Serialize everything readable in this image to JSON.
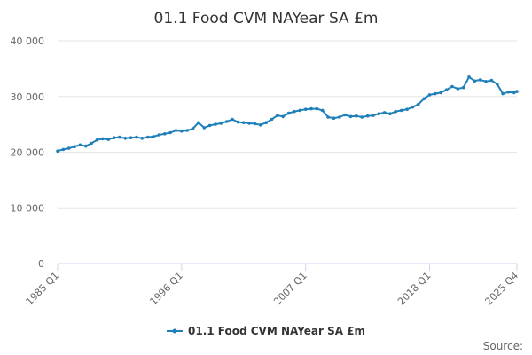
{
  "chart_data": {
    "type": "line",
    "title": "01.1 Food CVM NAYear SA £m",
    "xlabel": "",
    "ylabel": "",
    "ylim": [
      0,
      40000
    ],
    "y_ticks": [
      "0",
      "10 000",
      "20 000",
      "30 000",
      "40 000"
    ],
    "y_tick_values": [
      0,
      10000,
      20000,
      30000,
      40000
    ],
    "x_range": [
      1985.0,
      2025.75
    ],
    "x_ticks": [
      {
        "label": "1985 Q1",
        "value": 1985.0
      },
      {
        "label": "1996 Q1",
        "value": 1996.0
      },
      {
        "label": "2007 Q1",
        "value": 2007.0
      },
      {
        "label": "2018 Q1",
        "value": 2018.0
      },
      {
        "label": "2025 Q4",
        "value": 2025.75
      }
    ],
    "grid": true,
    "legend_position": "bottom-center",
    "color": "#1f7fb9",
    "series": [
      {
        "name": "01.1 Food CVM NAYear SA £m",
        "x": [
          1985.0,
          1985.5,
          1986.0,
          1986.5,
          1987.0,
          1987.5,
          1988.0,
          1988.5,
          1989.0,
          1989.5,
          1990.0,
          1990.5,
          1991.0,
          1991.5,
          1992.0,
          1992.5,
          1993.0,
          1993.5,
          1994.0,
          1994.5,
          1995.0,
          1995.5,
          1996.0,
          1996.5,
          1997.0,
          1997.5,
          1998.0,
          1998.5,
          1999.0,
          1999.5,
          2000.0,
          2000.5,
          2001.0,
          2001.5,
          2002.0,
          2002.5,
          2003.0,
          2003.5,
          2004.0,
          2004.5,
          2005.0,
          2005.5,
          2006.0,
          2006.5,
          2007.0,
          2007.5,
          2008.0,
          2008.5,
          2009.0,
          2009.5,
          2010.0,
          2010.5,
          2011.0,
          2011.5,
          2012.0,
          2012.5,
          2013.0,
          2013.5,
          2014.0,
          2014.5,
          2015.0,
          2015.5,
          2016.0,
          2016.5,
          2017.0,
          2017.5,
          2018.0,
          2018.5,
          2019.0,
          2019.5,
          2020.0,
          2020.5,
          2021.0,
          2021.5,
          2022.0,
          2022.5,
          2023.0,
          2023.5,
          2024.0,
          2024.5,
          2025.0,
          2025.5,
          2025.75
        ],
        "values": [
          20200,
          20500,
          20700,
          21000,
          21300,
          21100,
          21600,
          22200,
          22400,
          22300,
          22600,
          22700,
          22500,
          22600,
          22700,
          22500,
          22700,
          22800,
          23100,
          23300,
          23500,
          23900,
          23800,
          23900,
          24200,
          25300,
          24400,
          24800,
          25000,
          25200,
          25500,
          25900,
          25400,
          25300,
          25200,
          25100,
          24900,
          25300,
          25900,
          26600,
          26400,
          27000,
          27300,
          27500,
          27700,
          27800,
          27800,
          27500,
          26300,
          26100,
          26300,
          26700,
          26400,
          26500,
          26300,
          26500,
          26600,
          26900,
          27100,
          26900,
          27300,
          27500,
          27700,
          28100,
          28600,
          29600,
          30300,
          30500,
          30700,
          31200,
          31800,
          31400,
          31600,
          33500,
          32800,
          33000,
          32700,
          32900,
          32200,
          30500,
          30800,
          30700,
          30900
        ]
      }
    ]
  },
  "legend": {
    "label": "01.1 Food CVM NAYear SA £m"
  },
  "footer": {
    "source_label": "Source:"
  }
}
